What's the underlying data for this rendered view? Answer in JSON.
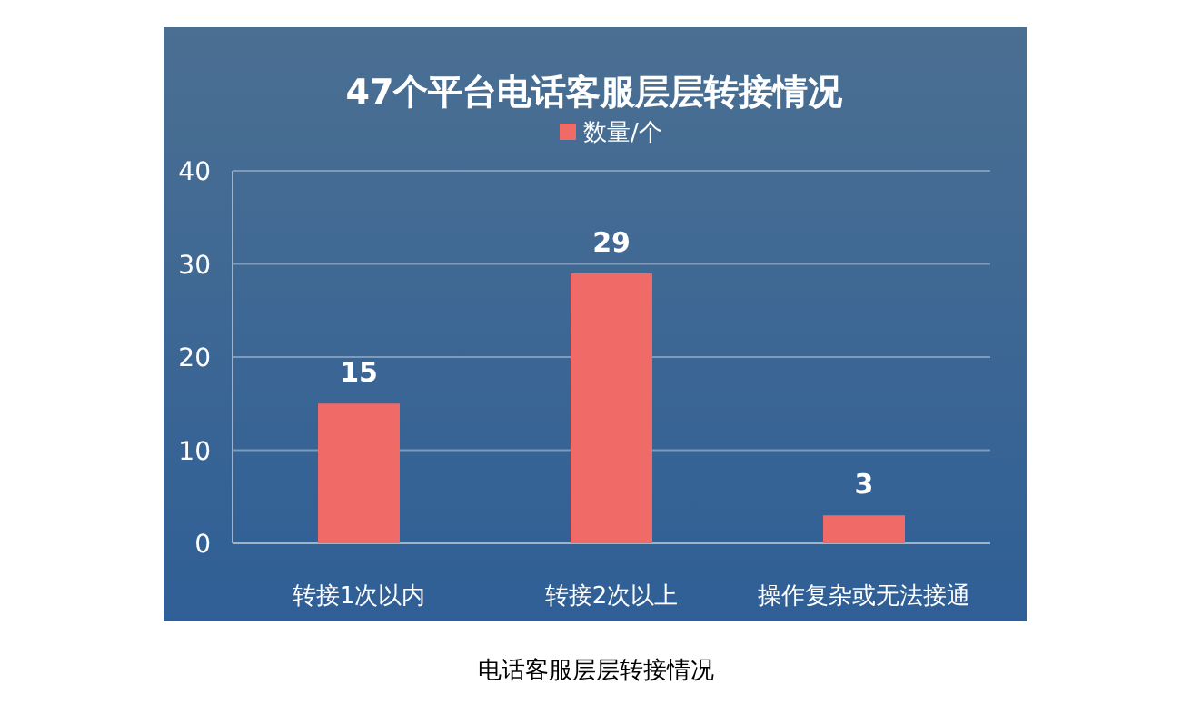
{
  "chart_data": {
    "type": "bar",
    "title": "47个平台电话客服层层转接情况",
    "categories": [
      "转接1次以内",
      "转接2次以上",
      "操作复杂或无法接通"
    ],
    "series": [
      {
        "name": "数量/个",
        "color": "#f06b67",
        "values": [
          15,
          29,
          3
        ]
      }
    ],
    "ylim": [
      0,
      40
    ],
    "yticks": [
      0,
      10,
      20,
      30,
      40
    ],
    "grid": "y",
    "legend": "top",
    "data_labels": true,
    "annotations": [
      "电话客服层层转接情况"
    ]
  }
}
